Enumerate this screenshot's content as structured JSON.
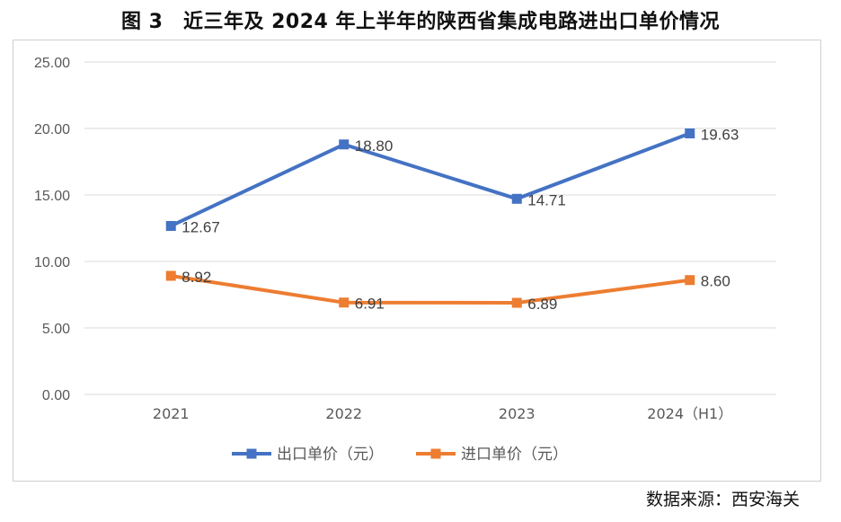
{
  "title": "图 3　近三年及 2024 年上半年的陕西省集成电路进出口单价情况",
  "source": "数据来源：西安海关",
  "chart_data": {
    "type": "line",
    "categories": [
      "2021",
      "2022",
      "2023",
      "2024（H1）"
    ],
    "ylim": [
      0,
      25
    ],
    "yticks": [
      "0.00",
      "5.00",
      "10.00",
      "15.00",
      "20.00",
      "25.00"
    ],
    "grid": true,
    "legend_position": "bottom",
    "series": [
      {
        "name": "出口单价（元）",
        "color": "#4472C4",
        "values": [
          12.67,
          18.8,
          14.71,
          19.63
        ],
        "labels": [
          "12.67",
          "18.80",
          "14.71",
          "19.63"
        ]
      },
      {
        "name": "进口单价（元）",
        "color": "#ED7D31",
        "values": [
          8.92,
          6.91,
          6.89,
          8.6
        ],
        "labels": [
          "8.92",
          "6.91",
          "6.89",
          "8.60"
        ]
      }
    ]
  }
}
